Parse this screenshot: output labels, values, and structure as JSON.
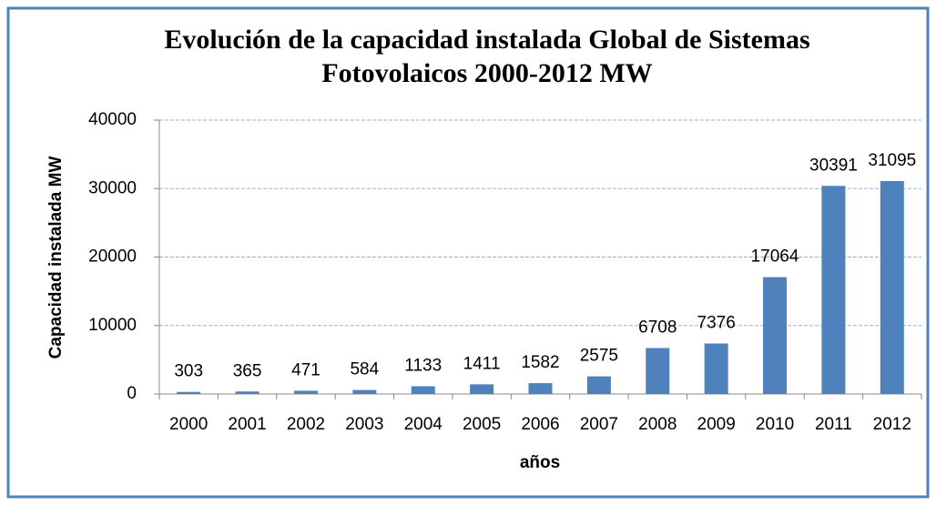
{
  "chart_data": {
    "type": "bar",
    "title": "Evolución de la capacidad instalada Global de Sistemas",
    "subtitle": "Fotovolaicos 2000-2012 MW",
    "y_label": "Capacidad instalada MW",
    "x_label": "años",
    "categories": [
      "2000",
      "2001",
      "2002",
      "2003",
      "2004",
      "2005",
      "2006",
      "2007",
      "2008",
      "2009",
      "2010",
      "2011",
      "2012"
    ],
    "values": [
      303,
      365,
      471,
      584,
      1133,
      1411,
      1582,
      2575,
      6708,
      7376,
      17064,
      30391,
      31095
    ],
    "color": "#4f81bd",
    "ylim": [
      0,
      40000
    ],
    "yticks": [
      0,
      10000,
      20000,
      30000,
      40000
    ],
    "grid": true
  }
}
